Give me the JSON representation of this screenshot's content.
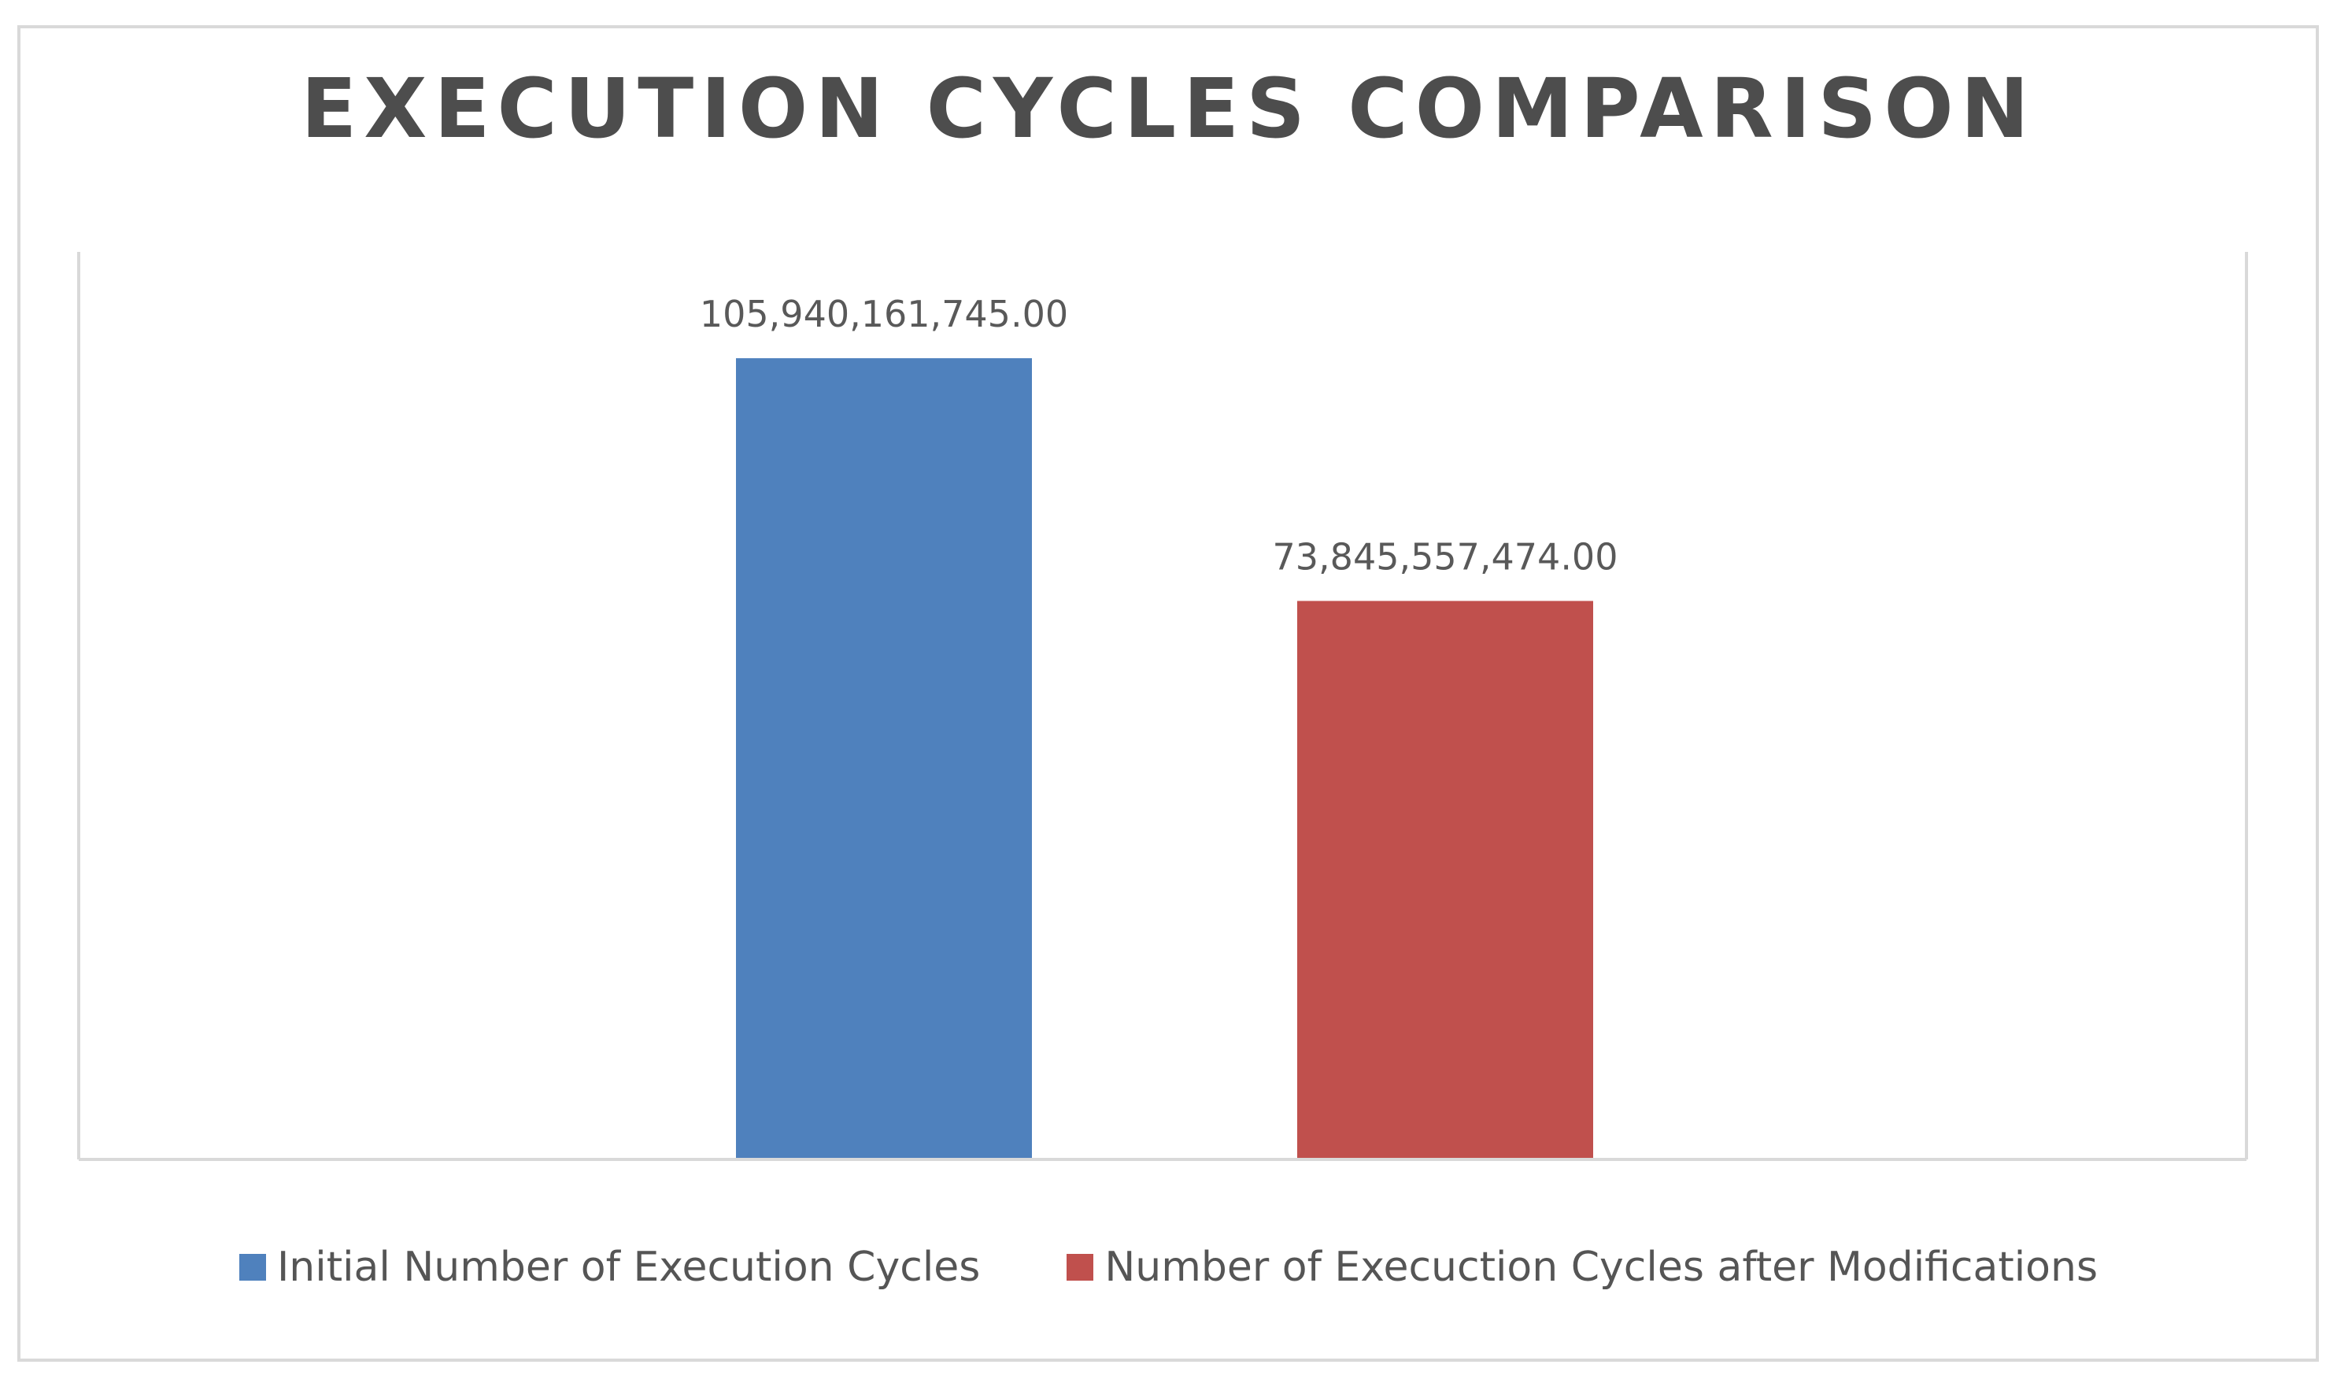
{
  "chart_data": {
    "type": "bar",
    "title": "EXECUTION CYCLES COMPARISON",
    "xlabel": "",
    "ylabel": "",
    "categories": [
      ""
    ],
    "series": [
      {
        "name": "Initial Number of Execution Cycles",
        "values": [
          105940161745.0
        ],
        "label": "105,940,161,745.00",
        "color": "#4f81bd"
      },
      {
        "name": "Number of Execuction Cycles after Modifications",
        "values": [
          73845557474.0
        ],
        "label": "73,845,557,474.00",
        "color": "#c0504d"
      }
    ],
    "ylim": [
      0,
      120000000000
    ],
    "grid": false,
    "legend": "bottom",
    "data_labels": true
  }
}
